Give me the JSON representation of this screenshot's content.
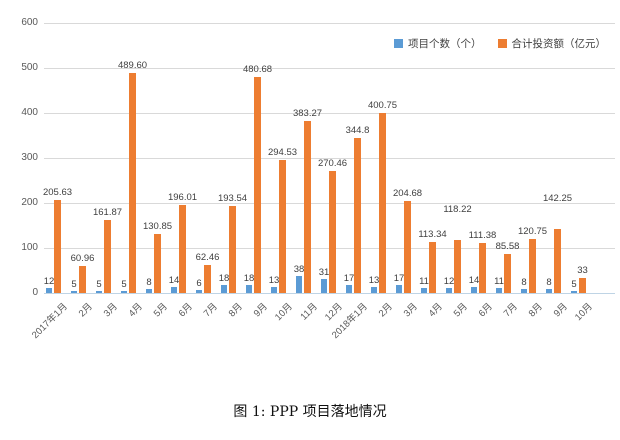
{
  "caption": "图 1: PPP 项目落地情况",
  "colors": {
    "projects": "#5B9BD5",
    "investment": "#ED7D31",
    "gridline": "#D9D9D9",
    "axis_line": "#BFD4E5",
    "tick_text": "#595959",
    "label_text": "#404040"
  },
  "chart_data": {
    "type": "bar",
    "title": "",
    "xlabel": "",
    "ylabel": "",
    "ylim": [
      0,
      600
    ],
    "yticks": [
      0,
      100,
      200,
      300,
      400,
      500,
      600
    ],
    "grid": true,
    "legend_position": "top-right",
    "categories": [
      "2017年1月",
      "2月",
      "3月",
      "4月",
      "5月",
      "6月",
      "7月",
      "8月",
      "9月",
      "10月",
      "11月",
      "12月",
      "2018年1月",
      "2月",
      "3月",
      "4月",
      "5月",
      "6月",
      "7月",
      "8月",
      "9月",
      "10月"
    ],
    "series": [
      {
        "name": "项目个数（个）",
        "color": "#5B9BD5",
        "values": [
          12,
          5,
          5,
          5,
          8,
          14,
          6,
          18,
          18,
          13,
          38,
          31,
          17,
          13,
          17,
          11,
          12,
          14,
          11,
          8,
          8,
          5
        ],
        "value_labels": [
          "12",
          "5",
          "5",
          "5",
          "8",
          "14",
          "6",
          "18",
          "18",
          "13",
          "38",
          "31",
          "17",
          "13",
          "17",
          "11",
          "12",
          "14",
          "11",
          "8",
          "8",
          "5"
        ]
      },
      {
        "name": "合计投资额（亿元）",
        "color": "#ED7D31",
        "values": [
          205.63,
          60.96,
          161.87,
          489.6,
          130.85,
          196.01,
          62.46,
          193.54,
          480.68,
          294.53,
          383.27,
          270.46,
          344.8,
          400.75,
          204.68,
          113.34,
          118.22,
          111.38,
          85.58,
          120.75,
          142.25,
          33
        ],
        "value_labels": [
          "205.63",
          "60.96",
          "161.87",
          "489.60",
          "130.85",
          "196.01",
          "62.46",
          "193.54",
          "480.68",
          "294.53",
          "383.27",
          "270.46",
          "344.8",
          "400.75",
          "204.68",
          "113.34",
          "118.22",
          "111.38",
          "85.58",
          "120.75",
          "142.25",
          "33"
        ]
      }
    ],
    "raised_label_indices": [
      16,
      20
    ]
  }
}
